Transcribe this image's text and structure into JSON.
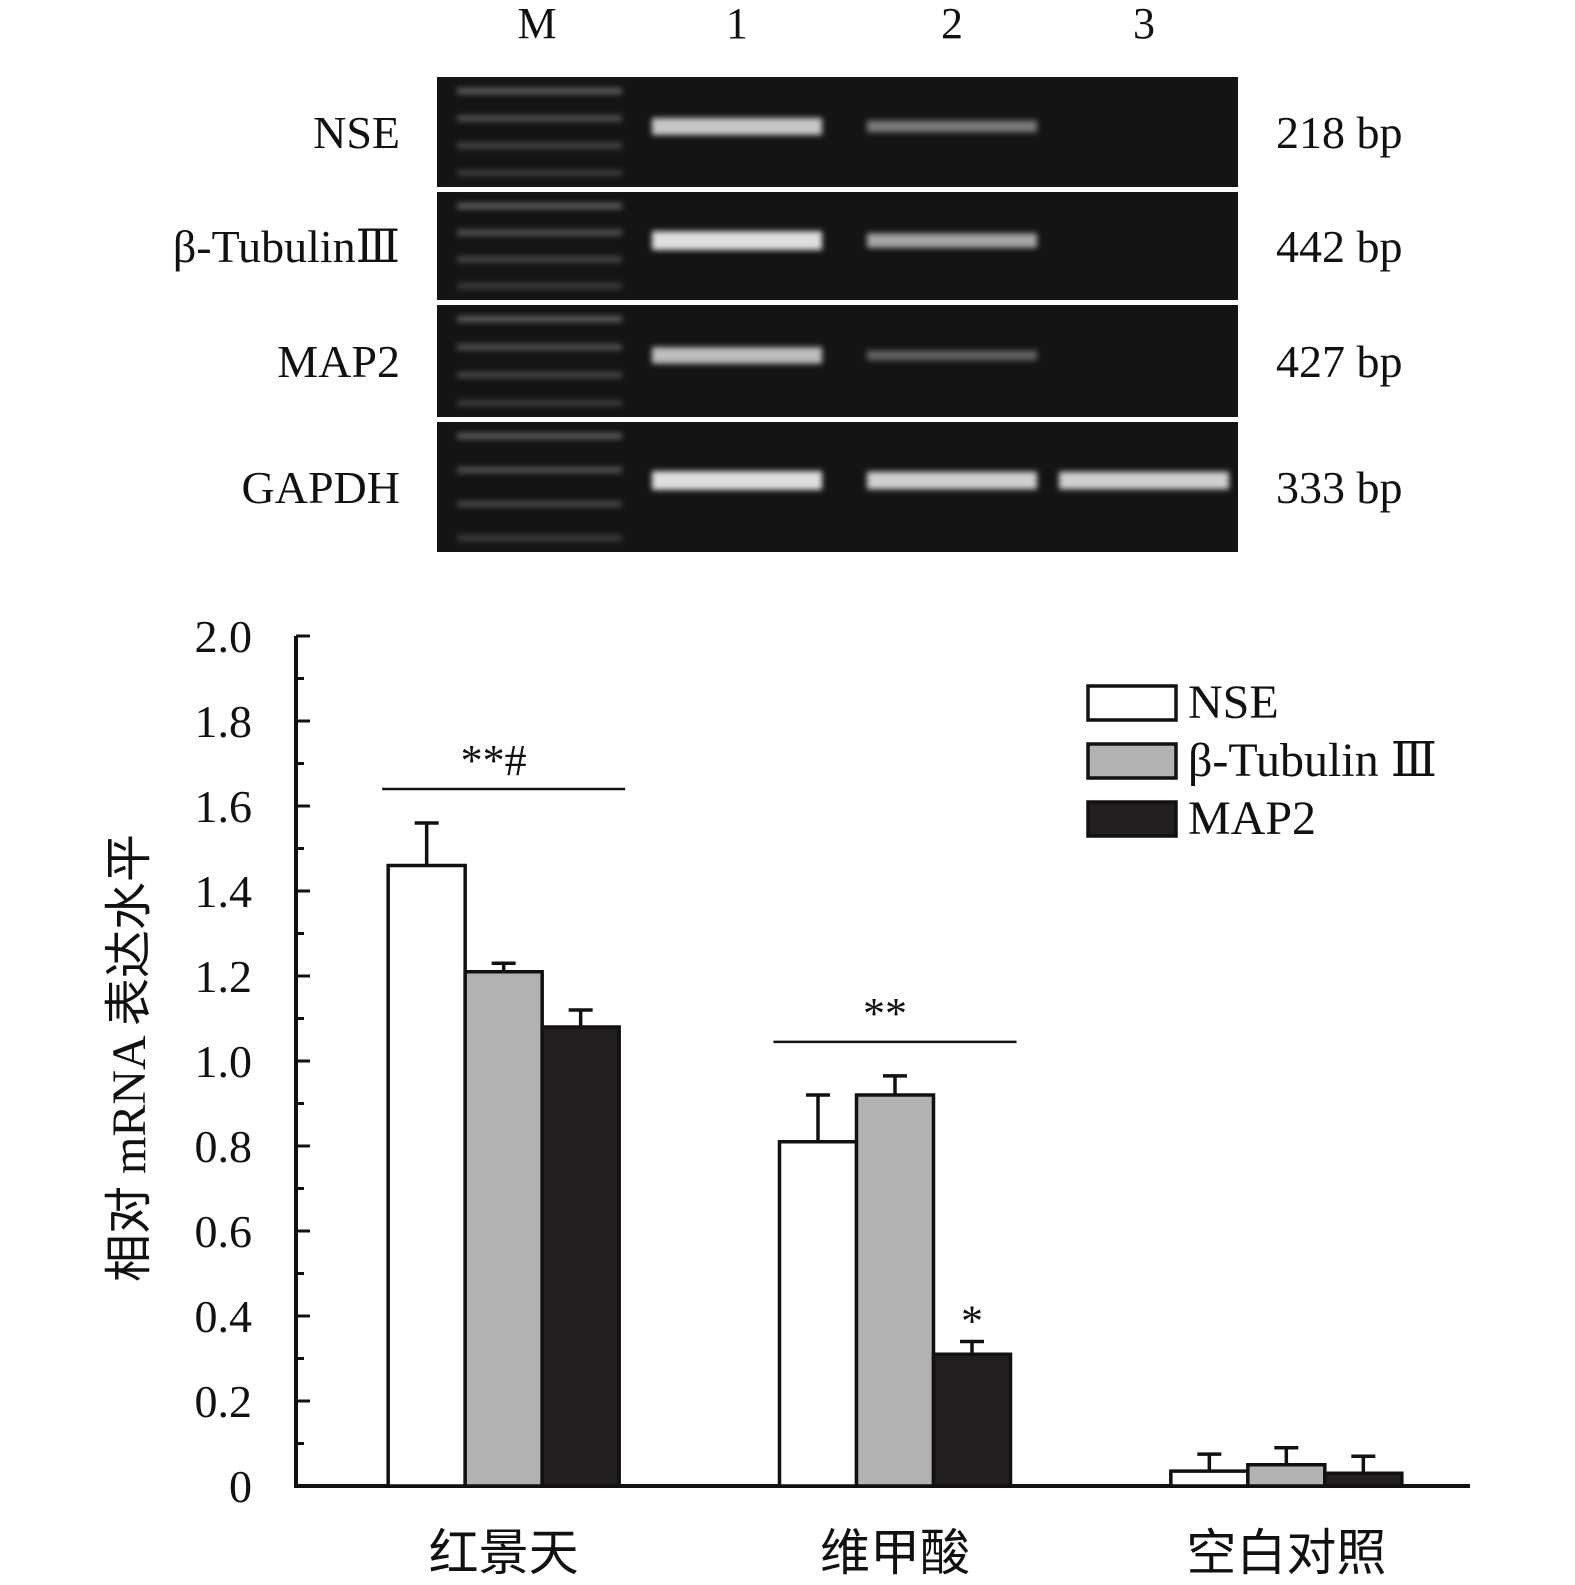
{
  "gel": {
    "lane_labels": [
      "M",
      "1",
      "2",
      "3"
    ],
    "rows": [
      {
        "gene": "NSE",
        "size": "218 bp",
        "band_intensity": [
          0.75,
          0.3,
          0.0
        ]
      },
      {
        "gene": "β-TubulinⅢ",
        "size": "442 bp",
        "band_intensity": [
          0.9,
          0.55,
          0.0
        ]
      },
      {
        "gene": "MAP2",
        "size": "427 bp",
        "band_intensity": [
          0.7,
          0.15,
          0.0
        ]
      },
      {
        "gene": "GAPDH",
        "size": "333 bp",
        "band_intensity": [
          0.9,
          0.8,
          0.8
        ]
      }
    ]
  },
  "chart_data": {
    "type": "bar",
    "ylabel": "相对 mRNA 表达水平",
    "xlabel": "",
    "ylim": [
      0,
      2.0
    ],
    "yticks": [
      "0",
      "0.2",
      "0.4",
      "0.6",
      "0.8",
      "1.0",
      "1.2",
      "1.4",
      "1.6",
      "1.8",
      "2.0"
    ],
    "categories": [
      "红景天",
      "维甲酸",
      "空白对照"
    ],
    "series": [
      {
        "name": "NSE",
        "color": "#ffffff",
        "values": [
          1.46,
          0.81,
          0.035
        ],
        "errors": [
          0.1,
          0.11,
          0.04
        ]
      },
      {
        "name": "β-Tubulin Ⅲ",
        "color": "#b2b2b2",
        "values": [
          1.21,
          0.92,
          0.05
        ],
        "errors": [
          0.02,
          0.045,
          0.04
        ]
      },
      {
        "name": "MAP2",
        "color": "#231f20",
        "values": [
          1.08,
          0.31,
          0.03
        ],
        "errors": [
          0.04,
          0.03,
          0.04
        ]
      }
    ],
    "group_annotations": [
      {
        "category": "红景天",
        "text": "**#"
      },
      {
        "category": "维甲酸",
        "text": "**"
      }
    ],
    "bar_annotations": [
      {
        "category": "维甲酸",
        "series": "MAP2",
        "text": "*"
      }
    ],
    "legend_position": "top-right",
    "grid": false
  }
}
